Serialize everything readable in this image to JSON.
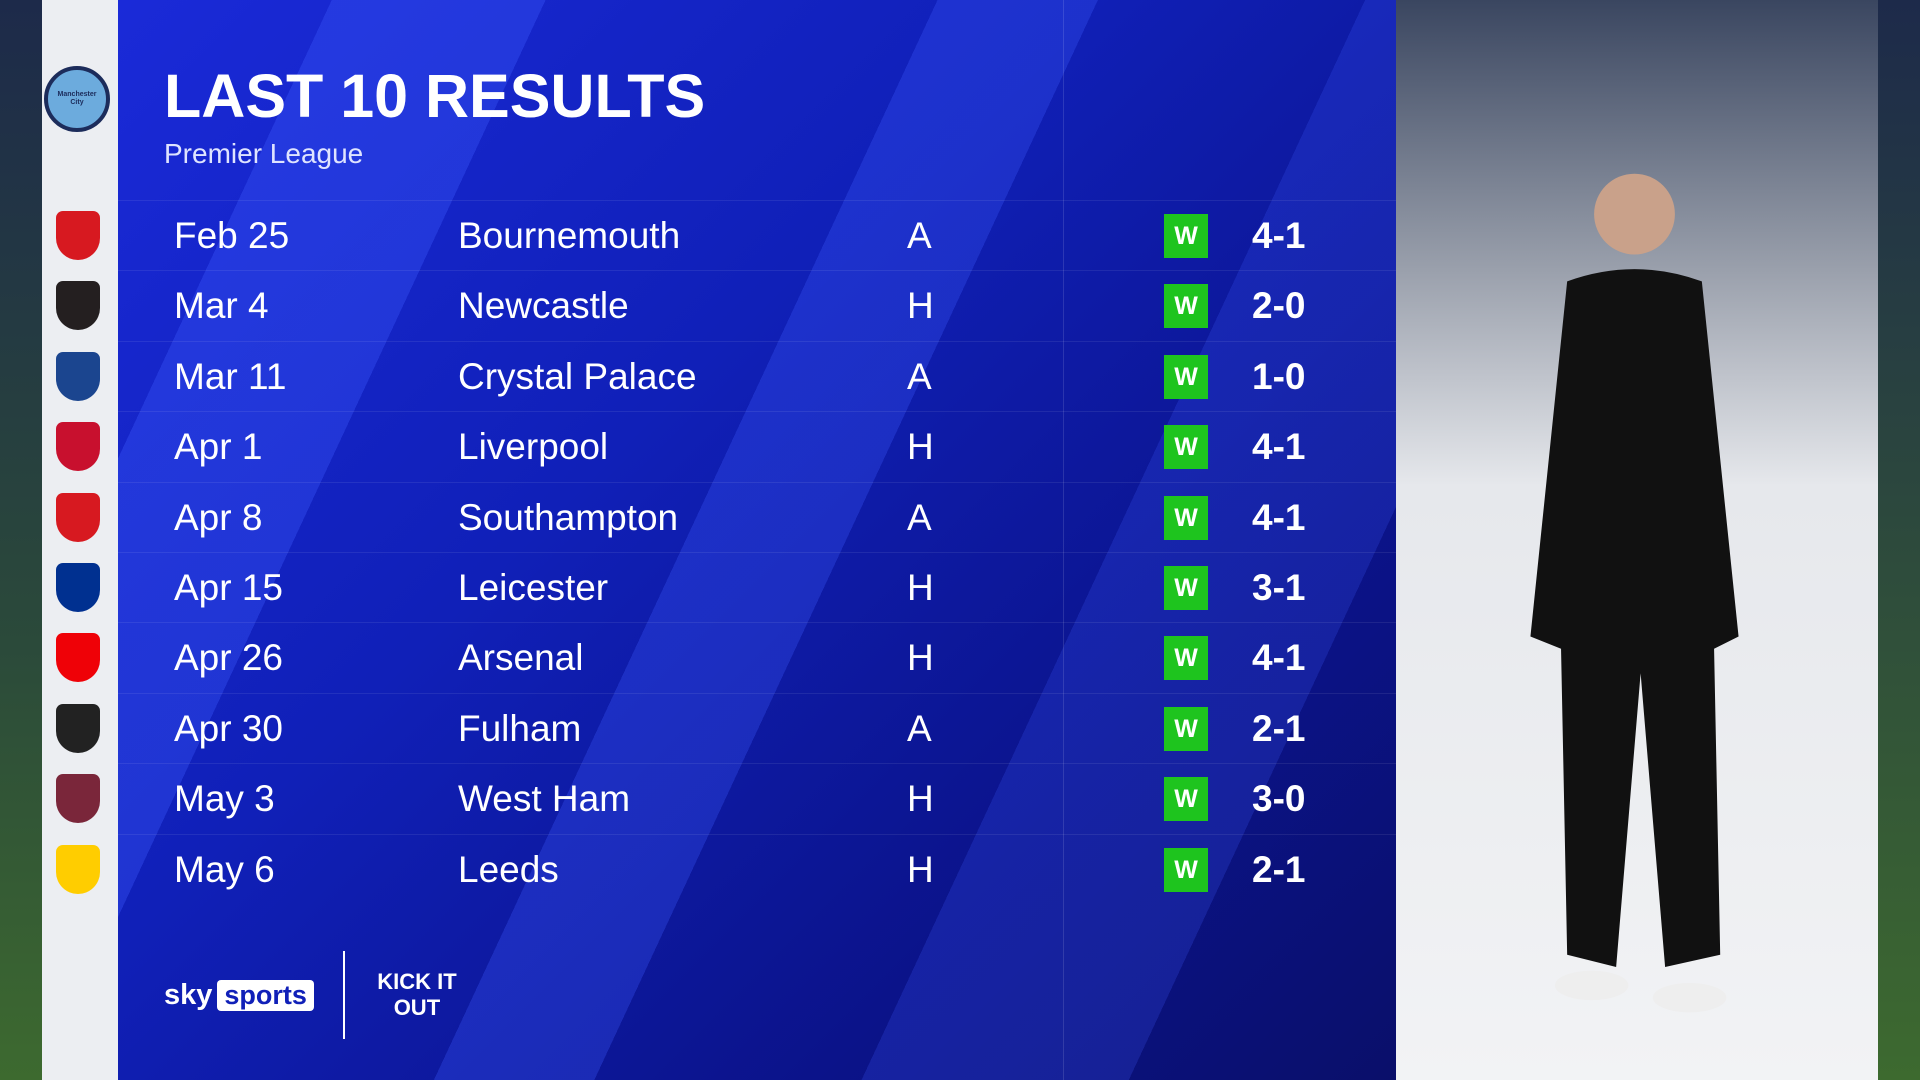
{
  "header": {
    "title": "LAST 10 RESULTS",
    "subtitle": "Premier League"
  },
  "team": {
    "name": "Manchester City",
    "crest_icon": "man-city-crest"
  },
  "colors": {
    "panel": "#1020b8",
    "win": "#1ec41e"
  },
  "results": [
    {
      "date": "Feb 25",
      "opponent": "Bournemouth",
      "venue": "A",
      "result": "W",
      "score": "4-1",
      "crest_color": "#d71920"
    },
    {
      "date": "Mar 4",
      "opponent": "Newcastle",
      "venue": "H",
      "result": "W",
      "score": "2-0",
      "crest_color": "#241f20"
    },
    {
      "date": "Mar 11",
      "opponent": "Crystal Palace",
      "venue": "A",
      "result": "W",
      "score": "1-0",
      "crest_color": "#1b458f"
    },
    {
      "date": "Apr 1",
      "opponent": "Liverpool",
      "venue": "H",
      "result": "W",
      "score": "4-1",
      "crest_color": "#c8102e"
    },
    {
      "date": "Apr 8",
      "opponent": "Southampton",
      "venue": "A",
      "result": "W",
      "score": "4-1",
      "crest_color": "#d71920"
    },
    {
      "date": "Apr 15",
      "opponent": "Leicester",
      "venue": "H",
      "result": "W",
      "score": "3-1",
      "crest_color": "#003090"
    },
    {
      "date": "Apr 26",
      "opponent": "Arsenal",
      "venue": "H",
      "result": "W",
      "score": "4-1",
      "crest_color": "#ef0107"
    },
    {
      "date": "Apr 30",
      "opponent": "Fulham",
      "venue": "A",
      "result": "W",
      "score": "2-1",
      "crest_color": "#222222"
    },
    {
      "date": "May 3",
      "opponent": "West Ham",
      "venue": "H",
      "result": "W",
      "score": "3-0",
      "crest_color": "#7a263a"
    },
    {
      "date": "May 6",
      "opponent": "Leeds",
      "venue": "H",
      "result": "W",
      "score": "2-1",
      "crest_color": "#ffcd00"
    }
  ],
  "footer": {
    "sky": "sky",
    "sports": "sports",
    "campaign": "KICK IT OUT"
  }
}
